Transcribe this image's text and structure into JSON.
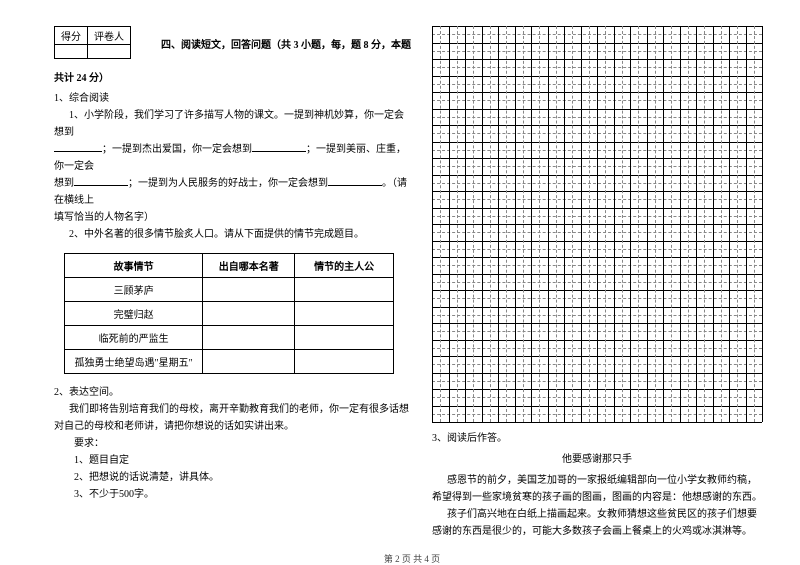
{
  "score": {
    "label1": "得分",
    "label2": "评卷人"
  },
  "section4": {
    "title": "四、阅读短文，回答问题（共 3 小题，每，题 8 分，本题",
    "title_cont": "共计 24 分）"
  },
  "q1": {
    "num": "1、综合阅读",
    "sub1_num": "1、",
    "sub1_text1": "小学阶段，我们学习了许多描写人物的课文。一提到神机妙算，你一定会想到",
    "sub1_text2": "；一提到杰出爱国，你一定会想到",
    "sub1_text3": "；一提到美丽、庄重，你一定会",
    "sub1_text4": "想到",
    "sub1_text5": "；一提到为人民服务的好战士，你一定会想到",
    "sub1_text6": "。（请在横线上",
    "sub1_text7": "填写恰当的人物名字）",
    "sub2_num": "2、",
    "sub2_text": "中外名著的很多情节脍炙人口。请从下面提供的情节完成题目。"
  },
  "table": {
    "headers": [
      "故事情节",
      "出自哪本名著",
      "情节的主人公"
    ],
    "rows": [
      [
        "三顾茅庐",
        "",
        ""
      ],
      [
        "完璧归赵",
        "",
        ""
      ],
      [
        "临死前的严监生",
        "",
        ""
      ],
      [
        "孤独勇士绝望岛遇\"星期五\"",
        "",
        ""
      ]
    ]
  },
  "q2": {
    "num": "2、表达空间。",
    "text1": "我们即将告别培育我们的母校，离开辛勤教育我们的老师，你一定有很多话想对自己的母校和老师讲，请把你想说的话如实讲出来。",
    "req_label": "要求：",
    "req1": "1、题目自定",
    "req2": "2、把想说的话说清楚，讲具体。",
    "req3": "3、不少于500字。"
  },
  "grid": {
    "cols": 20,
    "rows": 24,
    "cell_size": 16.5,
    "solid_color": "#000",
    "dash_color": "#888"
  },
  "q3": {
    "num": "3、阅读后作答。",
    "title": "他要感谢那只手",
    "p1": "感恩节的前夕，美国芝加哥的一家报纸编辑部向一位小学女教师约稿，希望得到一些家境贫寒的孩子画的图画，图画的内容是：他想感谢的东西。",
    "p2": "孩子们高兴地在白纸上描画起来。女教师猜想这些贫民区的孩子们想要感谢的东西是很少的，可能大多数孩子会画上餐桌上的火鸡或冰淇淋等。"
  },
  "footer": "第 2 页 共 4 页"
}
